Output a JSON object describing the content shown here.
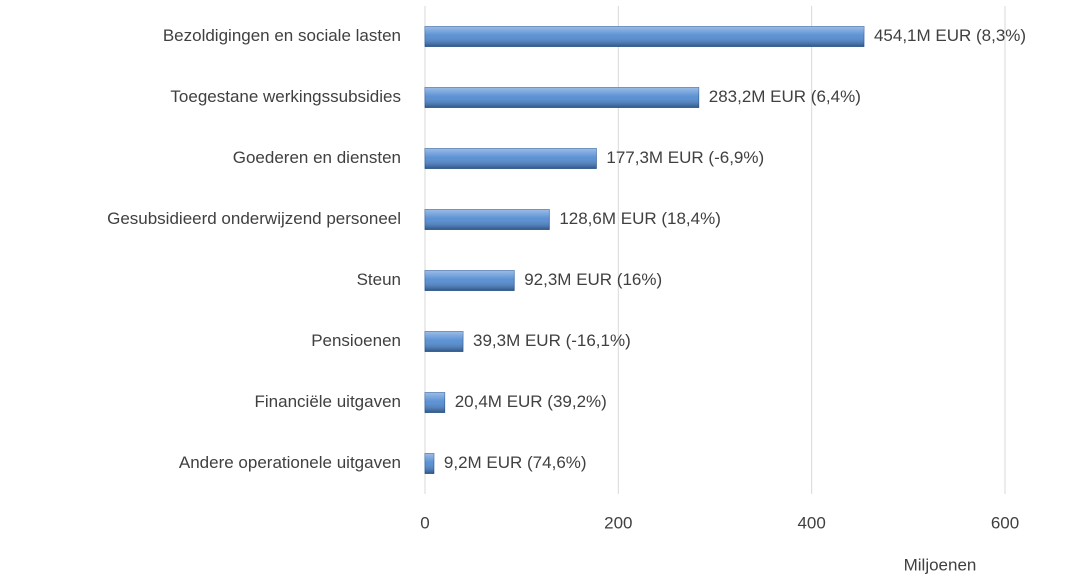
{
  "chart_data": {
    "type": "bar",
    "orientation": "horizontal",
    "categories": [
      "Bezoldigingen en sociale lasten",
      "Toegestane werkingssubsidies",
      "Goederen en diensten",
      "Gesubsidieerd onderwijzend personeel",
      "Steun",
      "Pensioenen",
      "Financiële uitgaven",
      "Andere operationele uitgaven"
    ],
    "values": [
      454.1,
      283.2,
      177.3,
      128.6,
      92.3,
      39.3,
      20.4,
      9.2
    ],
    "value_labels": [
      "454,1M EUR (8,3%)",
      "283,2M EUR (6,4%)",
      "177,3M EUR (-6,9%)",
      "128,6M EUR (18,4%)",
      "92,3M EUR (16%)",
      "39,3M EUR (-16,1%)",
      "20,4M EUR (39,2%)",
      "9,2M EUR (74,6%)"
    ],
    "color": "#4a86d0",
    "xlabel": "Miljoenen",
    "xlim": [
      0,
      600
    ],
    "xticks": [
      0,
      200,
      400,
      600
    ],
    "grid": true
  }
}
